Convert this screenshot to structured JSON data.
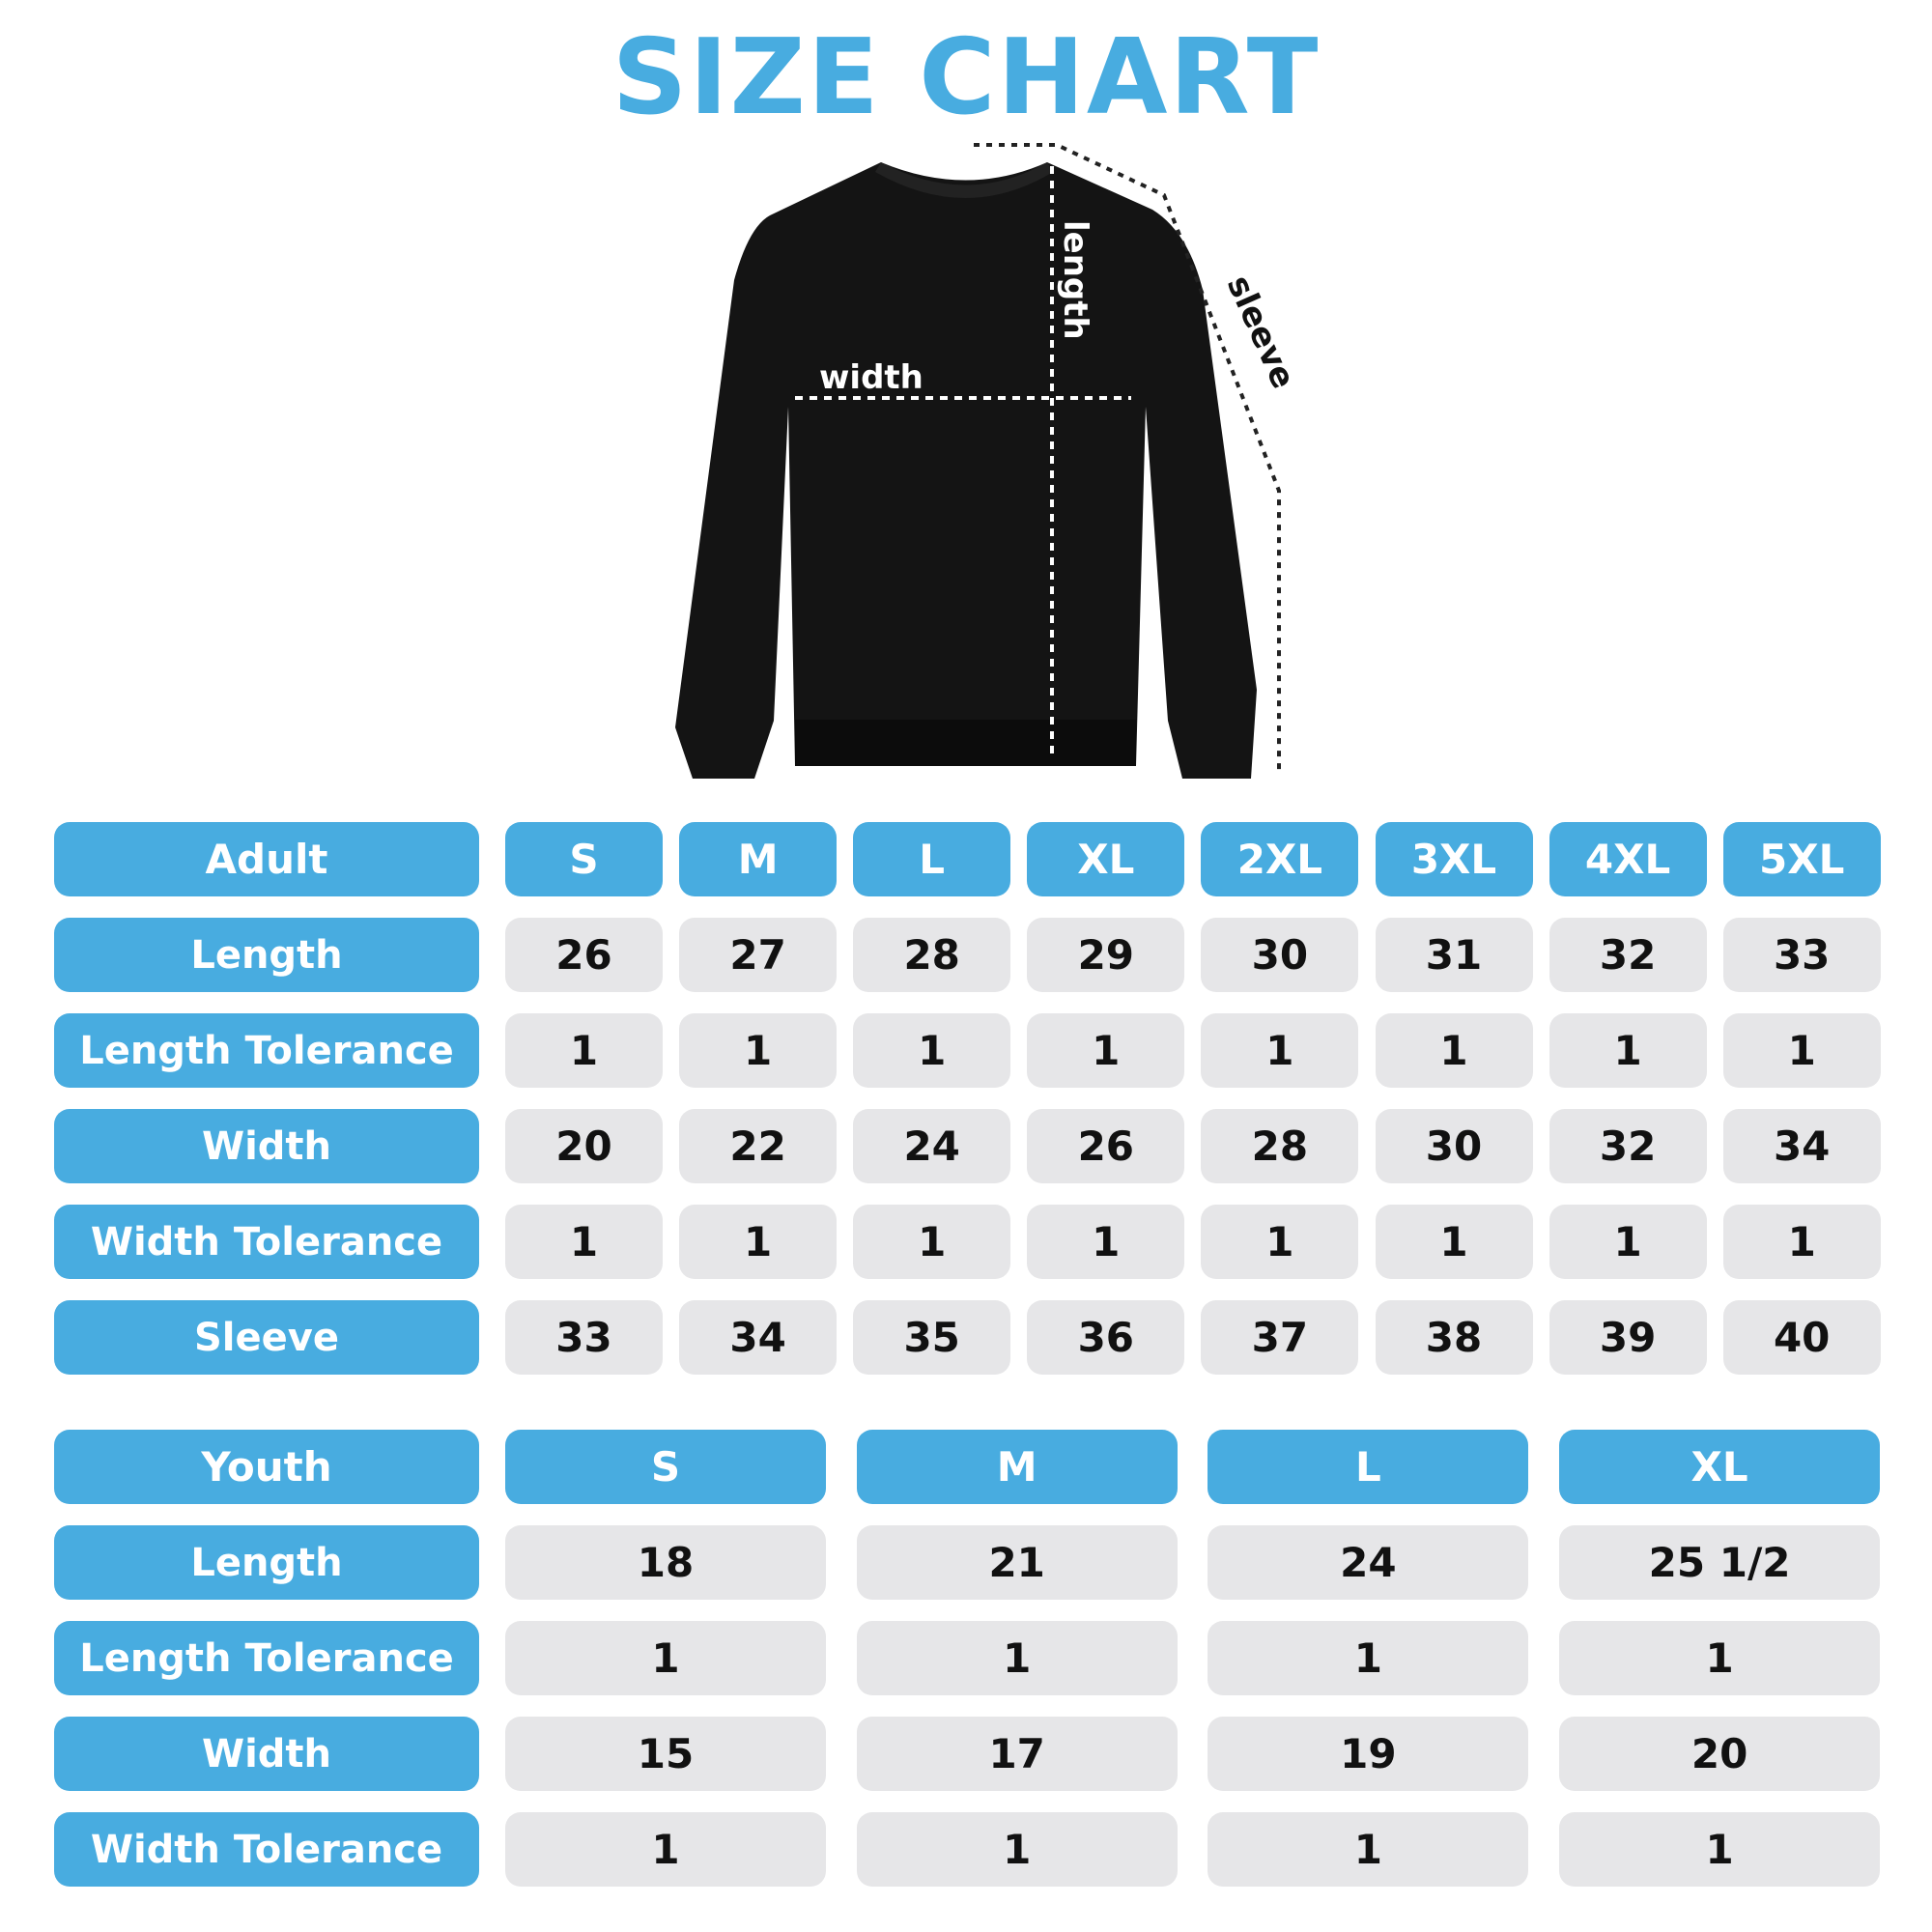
{
  "title": "SIZE CHART",
  "diagram": {
    "width_label": "width",
    "length_label": "length",
    "sleeve_label": "sleeve"
  },
  "colors": {
    "accent": "#48ace0",
    "cell": "#e6e6e8",
    "garment": "#141414"
  },
  "adult": {
    "header": "Adult",
    "sizes": [
      "S",
      "M",
      "L",
      "XL",
      "2XL",
      "3XL",
      "4XL",
      "5XL"
    ],
    "rows": [
      {
        "label": "Length",
        "values": [
          "26",
          "27",
          "28",
          "29",
          "30",
          "31",
          "32",
          "33"
        ]
      },
      {
        "label": "Length Tolerance",
        "values": [
          "1",
          "1",
          "1",
          "1",
          "1",
          "1",
          "1",
          "1"
        ]
      },
      {
        "label": "Width",
        "values": [
          "20",
          "22",
          "24",
          "26",
          "28",
          "30",
          "32",
          "34"
        ]
      },
      {
        "label": "Width Tolerance",
        "values": [
          "1",
          "1",
          "1",
          "1",
          "1",
          "1",
          "1",
          "1"
        ]
      },
      {
        "label": "Sleeve",
        "values": [
          "33",
          "34",
          "35",
          "36",
          "37",
          "38",
          "39",
          "40"
        ]
      }
    ]
  },
  "youth": {
    "header": "Youth",
    "sizes": [
      "S",
      "M",
      "L",
      "XL"
    ],
    "rows": [
      {
        "label": "Length",
        "values": [
          "18",
          "21",
          "24",
          "25 1/2"
        ]
      },
      {
        "label": "Length Tolerance",
        "values": [
          "1",
          "1",
          "1",
          "1"
        ]
      },
      {
        "label": "Width",
        "values": [
          "15",
          "17",
          "19",
          "20"
        ]
      },
      {
        "label": "Width Tolerance",
        "values": [
          "1",
          "1",
          "1",
          "1"
        ]
      }
    ]
  }
}
